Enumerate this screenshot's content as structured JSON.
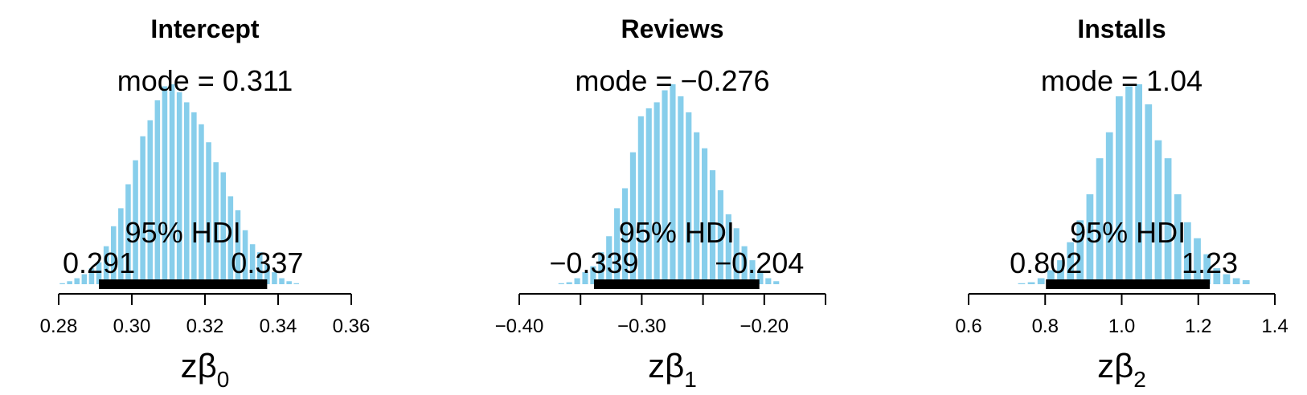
{
  "chart_data": [
    {
      "type": "bar",
      "title": "Intercept",
      "xlabel": "zβ",
      "xlabel_subscript": "0",
      "xlim": [
        0.28,
        0.36
      ],
      "ticks": [
        0.28,
        0.3,
        0.32,
        0.34,
        0.36
      ],
      "tick_labels": [
        "0.28",
        "0.30",
        "0.32",
        "0.34",
        "0.36"
      ],
      "bar_color": "#87ceeb",
      "mode_label": "mode = 0.311",
      "hdi_label": "95% HDI",
      "hdi": [
        0.291,
        0.337
      ],
      "hdi_low_label": "0.291",
      "hdi_high_label": "0.337",
      "bin_width": 0.002,
      "bins": [
        {
          "x": 0.281,
          "density": 0.5
        },
        {
          "x": 0.283,
          "density": 1.5
        },
        {
          "x": 0.285,
          "density": 3
        },
        {
          "x": 0.287,
          "density": 5
        },
        {
          "x": 0.289,
          "density": 8
        },
        {
          "x": 0.291,
          "density": 11
        },
        {
          "x": 0.293,
          "density": 19
        },
        {
          "x": 0.295,
          "density": 29
        },
        {
          "x": 0.297,
          "density": 38
        },
        {
          "x": 0.299,
          "density": 50
        },
        {
          "x": 0.301,
          "density": 62
        },
        {
          "x": 0.303,
          "density": 74
        },
        {
          "x": 0.305,
          "density": 82
        },
        {
          "x": 0.307,
          "density": 92
        },
        {
          "x": 0.309,
          "density": 99
        },
        {
          "x": 0.311,
          "density": 100
        },
        {
          "x": 0.313,
          "density": 96
        },
        {
          "x": 0.315,
          "density": 91
        },
        {
          "x": 0.317,
          "density": 86
        },
        {
          "x": 0.319,
          "density": 80
        },
        {
          "x": 0.321,
          "density": 71
        },
        {
          "x": 0.323,
          "density": 61
        },
        {
          "x": 0.325,
          "density": 56
        },
        {
          "x": 0.327,
          "density": 44
        },
        {
          "x": 0.329,
          "density": 37
        },
        {
          "x": 0.331,
          "density": 27
        },
        {
          "x": 0.333,
          "density": 20
        },
        {
          "x": 0.335,
          "density": 16
        },
        {
          "x": 0.337,
          "density": 10
        },
        {
          "x": 0.339,
          "density": 6
        },
        {
          "x": 0.341,
          "density": 3
        },
        {
          "x": 0.343,
          "density": 1.5
        },
        {
          "x": 0.345,
          "density": 0.5
        }
      ]
    },
    {
      "type": "bar",
      "title": "Reviews",
      "xlabel": "zβ",
      "xlabel_subscript": "1",
      "xlim": [
        -0.4,
        -0.15
      ],
      "ticks": [
        -0.4,
        -0.35,
        -0.3,
        -0.25,
        -0.2,
        -0.15
      ],
      "tick_labels": [
        "−0.40",
        "",
        "−0.30",
        "",
        "−0.20",
        ""
      ],
      "bar_color": "#87ceeb",
      "mode_label": "mode = −0.276",
      "hdi_label": "95% HDI",
      "hdi": [
        -0.339,
        -0.204
      ],
      "hdi_low_label": "−0.339",
      "hdi_high_label": "−0.204",
      "bin_width": 0.0065,
      "bins": [
        {
          "x": -0.3657,
          "density": 0.5
        },
        {
          "x": -0.3592,
          "density": 1
        },
        {
          "x": -0.3527,
          "density": 3
        },
        {
          "x": -0.3462,
          "density": 6
        },
        {
          "x": -0.3397,
          "density": 9
        },
        {
          "x": -0.3332,
          "density": 16
        },
        {
          "x": -0.3267,
          "density": 24
        },
        {
          "x": -0.3202,
          "density": 38
        },
        {
          "x": -0.3137,
          "density": 48
        },
        {
          "x": -0.3072,
          "density": 66
        },
        {
          "x": -0.3007,
          "density": 84
        },
        {
          "x": -0.2942,
          "density": 88
        },
        {
          "x": -0.2877,
          "density": 91
        },
        {
          "x": -0.2812,
          "density": 97
        },
        {
          "x": -0.2747,
          "density": 100
        },
        {
          "x": -0.2682,
          "density": 94
        },
        {
          "x": -0.2617,
          "density": 86
        },
        {
          "x": -0.2552,
          "density": 76
        },
        {
          "x": -0.2487,
          "density": 68
        },
        {
          "x": -0.2422,
          "density": 57
        },
        {
          "x": -0.2357,
          "density": 47
        },
        {
          "x": -0.2292,
          "density": 35
        },
        {
          "x": -0.2227,
          "density": 28
        },
        {
          "x": -0.2162,
          "density": 19
        },
        {
          "x": -0.2097,
          "density": 12
        },
        {
          "x": -0.2032,
          "density": 6
        },
        {
          "x": -0.1967,
          "density": 3
        },
        {
          "x": -0.1902,
          "density": 1.5
        }
      ]
    },
    {
      "type": "bar",
      "title": "Installs",
      "xlabel": "zβ",
      "xlabel_subscript": "2",
      "xlim": [
        0.6,
        1.4
      ],
      "ticks": [
        0.6,
        0.8,
        1.0,
        1.2,
        1.4
      ],
      "tick_labels": [
        "0.6",
        "0.8",
        "1.0",
        "1.2",
        "1.4"
      ],
      "bar_color": "#87ceeb",
      "mode_label": "mode = 1.04",
      "hdi_label": "95% HDI",
      "hdi": [
        0.802,
        1.23
      ],
      "hdi_low_label": "0.802",
      "hdi_high_label": "1.23",
      "bin_width": 0.0255,
      "bins": [
        {
          "x": 0.7384,
          "density": 0.5
        },
        {
          "x": 0.7639,
          "density": 1
        },
        {
          "x": 0.7894,
          "density": 3
        },
        {
          "x": 0.8149,
          "density": 7
        },
        {
          "x": 0.8404,
          "density": 12
        },
        {
          "x": 0.8659,
          "density": 21
        },
        {
          "x": 0.8914,
          "density": 32
        },
        {
          "x": 0.9169,
          "density": 45
        },
        {
          "x": 0.9424,
          "density": 63
        },
        {
          "x": 0.9679,
          "density": 76
        },
        {
          "x": 0.9934,
          "density": 94
        },
        {
          "x": 1.0189,
          "density": 99
        },
        {
          "x": 1.0444,
          "density": 100
        },
        {
          "x": 1.0699,
          "density": 90
        },
        {
          "x": 1.0954,
          "density": 72
        },
        {
          "x": 1.1209,
          "density": 63
        },
        {
          "x": 1.1464,
          "density": 45
        },
        {
          "x": 1.1719,
          "density": 31
        },
        {
          "x": 1.1974,
          "density": 23
        },
        {
          "x": 1.2229,
          "density": 15
        },
        {
          "x": 1.2484,
          "density": 8
        },
        {
          "x": 1.2739,
          "density": 5
        },
        {
          "x": 1.2994,
          "density": 3
        },
        {
          "x": 1.3249,
          "density": 2
        }
      ]
    }
  ]
}
